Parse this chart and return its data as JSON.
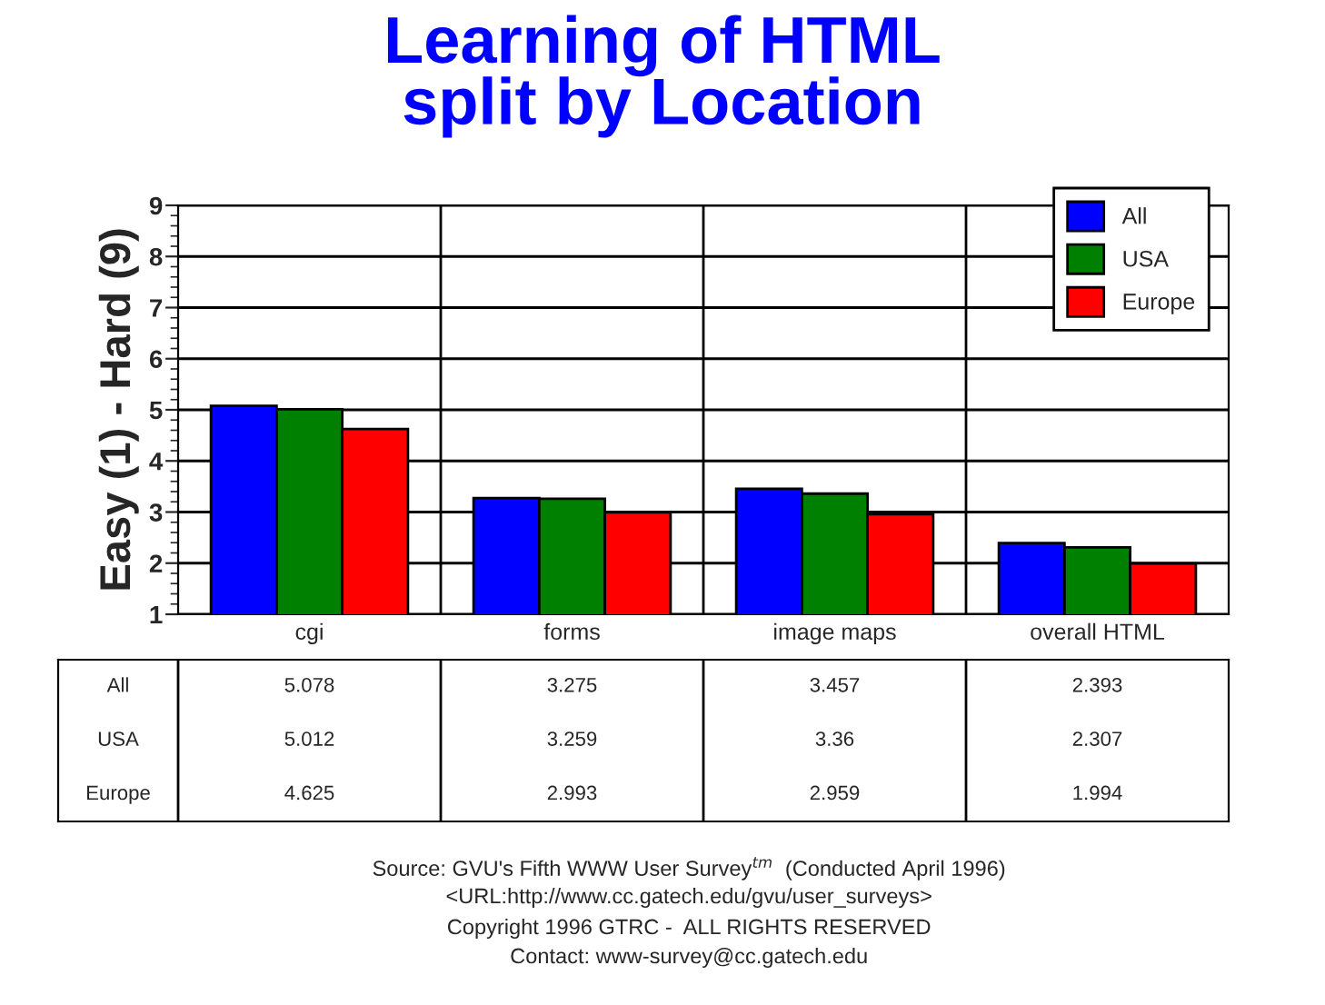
{
  "chart_data": {
    "type": "bar",
    "title": "Learning of HTML\nsplit by Location",
    "ylabel": "Easy (1) - Hard (9)",
    "categories": [
      "cgi",
      "forms",
      "image maps",
      "overall HTML"
    ],
    "series": [
      {
        "name": "All",
        "color": "#0000ff",
        "values": [
          5.078,
          3.275,
          3.457,
          2.393
        ]
      },
      {
        "name": "USA",
        "color": "#008000",
        "values": [
          5.012,
          3.259,
          3.36,
          2.307
        ]
      },
      {
        "name": "Europe",
        "color": "#ff0000",
        "values": [
          4.625,
          2.993,
          2.959,
          1.994
        ]
      }
    ],
    "ylim": [
      1,
      9
    ],
    "yticks": [
      1,
      2,
      3,
      4,
      5,
      6,
      7,
      8,
      9
    ],
    "grid": "y",
    "legend": "top right",
    "data_labels": true,
    "annotations": [
      "Source: GVU's Fifth WWW User Survey$^{tm}$  (Conducted April 1996)",
      "<URL:http://www.cc.gatech.edu/gvu/user_surveys>",
      "Copyright 1996 GTRC -  ALL RIGHTS RESERVED",
      "Contact: www-survey@cc.gatech.edu"
    ]
  }
}
